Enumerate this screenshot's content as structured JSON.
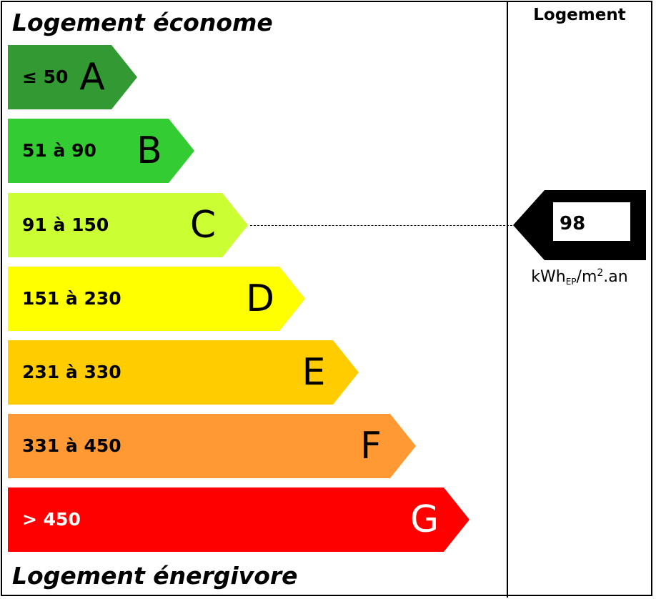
{
  "headings": {
    "top": "Logement économe",
    "bottom": "Logement énergivore"
  },
  "column_header": "Logement",
  "bands": [
    {
      "letter": "A",
      "range": "≤ 50",
      "color": "#339933",
      "text_color": "#000000"
    },
    {
      "letter": "B",
      "range": "51 à 90",
      "color": "#33cc33",
      "text_color": "#000000"
    },
    {
      "letter": "C",
      "range": "91 à 150",
      "color": "#ccff33",
      "text_color": "#000000"
    },
    {
      "letter": "D",
      "range": "151 à 230",
      "color": "#ffff00",
      "text_color": "#000000"
    },
    {
      "letter": "E",
      "range": "231 à 330",
      "color": "#ffcc00",
      "text_color": "#000000"
    },
    {
      "letter": "F",
      "range": "331 à 450",
      "color": "#ff9933",
      "text_color": "#000000"
    },
    {
      "letter": "G",
      "range": "> 450",
      "color": "#ff0000",
      "text_color": "#ffffff"
    }
  ],
  "rating": {
    "value": "98",
    "class": "C"
  },
  "unit": {
    "prefix": "kWh",
    "subscript": "EP",
    "middle": "/m",
    "superscript": "2",
    "suffix": ".an"
  }
}
